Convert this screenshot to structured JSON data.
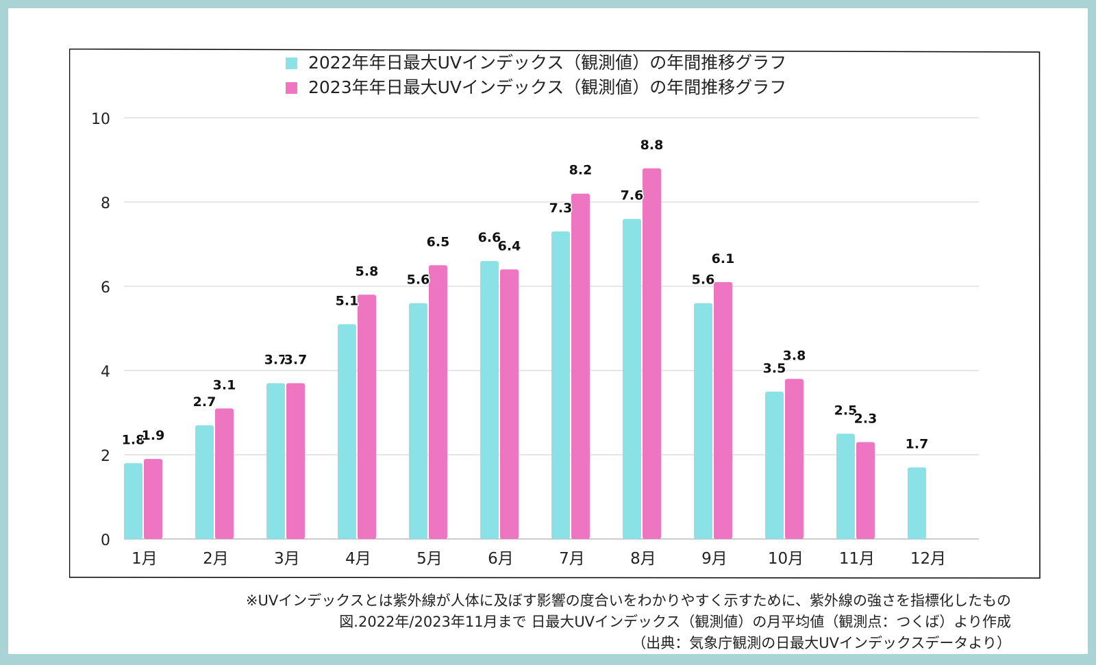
{
  "colors": {
    "series_2022": "#8be2e6",
    "series_2023": "#ee75c0",
    "gridline": "#cccccc",
    "frame_border": "#000000",
    "page_background": "#a9d3d4"
  },
  "chart_data": {
    "type": "bar",
    "categories": [
      "1月",
      "2月",
      "3月",
      "4月",
      "5月",
      "6月",
      "7月",
      "8月",
      "9月",
      "10月",
      "11月",
      "12月"
    ],
    "series": [
      {
        "name": "2022年年日最大UVインデックス（観測値）の年間推移グラフ",
        "values": [
          1.8,
          2.7,
          3.7,
          5.1,
          5.6,
          6.6,
          7.3,
          7.6,
          5.6,
          3.5,
          2.5,
          1.7
        ]
      },
      {
        "name": "2023年年日最大UVインデックス（観測値）の年間推移グラフ",
        "values": [
          1.9,
          3.1,
          3.7,
          5.8,
          6.5,
          6.4,
          8.2,
          8.8,
          6.1,
          3.8,
          2.3,
          null
        ]
      }
    ],
    "data_labels": {
      "series_2022": [
        "1.8",
        "2.7",
        "3.7",
        "5.1",
        "5.6",
        "6.6",
        "7.3",
        "7.6",
        "5.6",
        "3.5",
        "2.5",
        "1.7"
      ],
      "series_2023": [
        "1.9",
        "3.1",
        "3.7",
        "5.8",
        "6.5",
        "6.4",
        "8.2",
        "8.8",
        "6.1",
        "3.8",
        "2.3",
        ""
      ]
    },
    "y_ticks": [
      "0",
      "2",
      "4",
      "6",
      "8",
      "10"
    ],
    "ylim": [
      0,
      10
    ],
    "grid": true,
    "legend_position": "top-center"
  },
  "notes": [
    "※UVインデックスとは紫外線が人体に及ぼす影響の度合いをわかりやすく示すために、紫外線の強さを指標化したもの",
    "図.2022年/2023年11月まで 日最大UVインデックス（観測値）の月平均値（観測点：つくば）より作成",
    "（出典：気象庁観測の日最大UVインデックスデータより）"
  ]
}
